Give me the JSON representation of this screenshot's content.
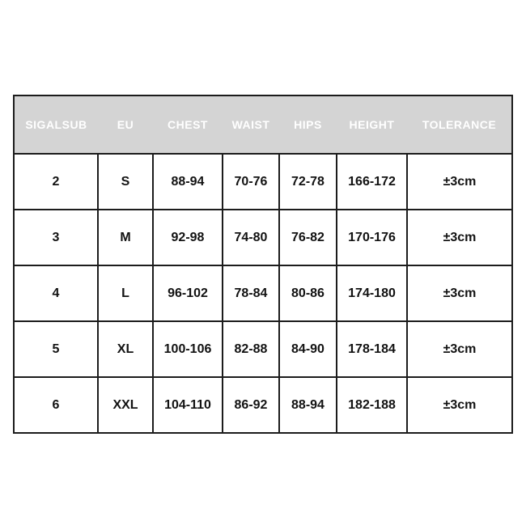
{
  "table": {
    "columns": [
      {
        "key": "sigalsub",
        "label": "SIGALSUB"
      },
      {
        "key": "eu",
        "label": "EU"
      },
      {
        "key": "chest",
        "label": "CHEST"
      },
      {
        "key": "waist",
        "label": "WAIST"
      },
      {
        "key": "hips",
        "label": "HIPS"
      },
      {
        "key": "height",
        "label": "HEIGHT"
      },
      {
        "key": "tolerance",
        "label": "TOLERANCE"
      }
    ],
    "rows": [
      [
        "2",
        "S",
        "88-94",
        "70-76",
        "72-78",
        "166-172",
        "±3cm"
      ],
      [
        "3",
        "M",
        "92-98",
        "74-80",
        "76-82",
        "170-176",
        "±3cm"
      ],
      [
        "4",
        "L",
        "96-102",
        "78-84",
        "80-86",
        "174-180",
        "±3cm"
      ],
      [
        "5",
        "XL",
        "100-106",
        "82-88",
        "84-90",
        "178-184",
        "±3cm"
      ],
      [
        "6",
        "XXL",
        "104-110",
        "86-92",
        "88-94",
        "182-188",
        "±3cm"
      ]
    ],
    "colors": {
      "header_bg": "#d4d4d4",
      "header_text": "#ffffff",
      "border": "#1c1c1c",
      "cell_text": "#121212",
      "page_bg": "#ffffff"
    }
  },
  "chart_data": {
    "type": "table",
    "title": "SIGALSUB size chart",
    "columns": [
      "SIGALSUB",
      "EU",
      "CHEST",
      "WAIST",
      "HIPS",
      "HEIGHT",
      "TOLERANCE"
    ],
    "rows": [
      [
        "2",
        "S",
        "88-94",
        "70-76",
        "72-78",
        "166-172",
        "±3cm"
      ],
      [
        "3",
        "M",
        "92-98",
        "74-80",
        "76-82",
        "170-176",
        "±3cm"
      ],
      [
        "4",
        "L",
        "96-102",
        "78-84",
        "80-86",
        "174-180",
        "±3cm"
      ],
      [
        "5",
        "XL",
        "100-106",
        "82-88",
        "84-90",
        "178-184",
        "±3cm"
      ],
      [
        "6",
        "XXL",
        "104-110",
        "86-92",
        "88-94",
        "182-188",
        "±3cm"
      ]
    ],
    "layout_hints": {
      "header_style": "gray band, white bold uppercase text, no internal dividers",
      "body_style": "white cells, bold black centered text, 2px black grid borders"
    }
  }
}
